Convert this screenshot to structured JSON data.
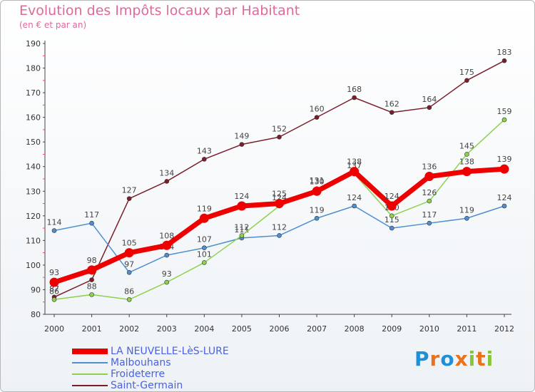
{
  "title": "Evolution des Impôts locaux par Habitant",
  "subtitle": "(en € et par an)",
  "logo": "Proxiti",
  "chart_data": {
    "type": "line",
    "title": "Evolution des Impôts locaux par Habitant",
    "subtitle": "(en € et par an)",
    "x": [
      "2000",
      "2001",
      "2002",
      "2003",
      "2004",
      "2005",
      "2006",
      "2007",
      "2008",
      "2009",
      "2010",
      "2011",
      "2012"
    ],
    "y_ticks": [
      80,
      90,
      100,
      110,
      120,
      130,
      140,
      150,
      160,
      170,
      180,
      190
    ],
    "ylim": [
      80,
      190
    ],
    "grid": false,
    "legend_position": "bottom-left",
    "series": [
      {
        "name": "Saint-Germain",
        "color": "#7a1e2a",
        "values": [
          87,
          94,
          127,
          134,
          143,
          149,
          152,
          160,
          168,
          162,
          164,
          175,
          183
        ],
        "labels": [
          "87",
          "94",
          "127",
          "134",
          "143",
          "149",
          "152",
          "160",
          "168",
          "162",
          "164",
          "175",
          "183"
        ]
      },
      {
        "name": "Malbouhans",
        "color": "#4f8fcf",
        "values": [
          114,
          117,
          97,
          104,
          107,
          111,
          112,
          119,
          124,
          115,
          117,
          119,
          124
        ],
        "labels": [
          "114",
          "117",
          "97",
          "104",
          "107",
          "111",
          "112",
          "119",
          "124",
          "115",
          "117",
          "119",
          "124"
        ]
      },
      {
        "name": "Froideterre",
        "color": "#8fd14f",
        "values": [
          86,
          88,
          86,
          93,
          101,
          112,
          124,
          131,
          137,
          120,
          126,
          145,
          159
        ],
        "labels": [
          "86",
          "88",
          "86",
          "93",
          "101",
          "112",
          "124",
          "131",
          "137",
          "120",
          "126",
          "145",
          "159"
        ]
      },
      {
        "name": "LA NEUVELLE-LèS-LURE",
        "color": "#ee0000",
        "values": [
          93,
          98,
          105,
          108,
          119,
          124,
          125,
          130,
          138,
          124,
          136,
          138,
          139
        ],
        "labels": [
          "93",
          "98",
          "105",
          "108",
          "119",
          "124",
          "125",
          "130",
          "138",
          "124",
          "136",
          "138",
          "139"
        ]
      }
    ],
    "legend_order": [
      "LA NEUVELLE-LèS-LURE",
      "Malbouhans",
      "Froideterre",
      "Saint-Germain"
    ]
  },
  "logo_colors": [
    "#1f8fd8",
    "#e8731c",
    "#1f8fd8",
    "#e8731c",
    "#8ac43a",
    "#e8731c",
    "#8ac43a"
  ]
}
